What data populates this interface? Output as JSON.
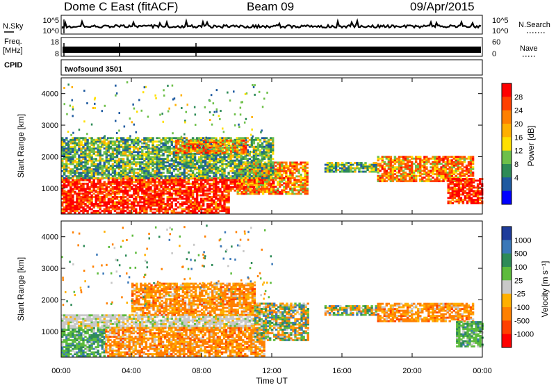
{
  "header": {
    "station": "Dome C East (fitACF)",
    "beam": "Beam 09",
    "date": "09/Apr/2015"
  },
  "left_labels": {
    "nsky": "N.Sky",
    "freq": "Freq.",
    "freq_unit": "[MHz]",
    "cpid": "CPID"
  },
  "right_labels": {
    "nsearch": "N.Search",
    "nave": "Nave"
  },
  "noise_panel": {
    "left_ticks": [
      "10^5",
      "10^0"
    ],
    "right_ticks": [
      "10^5",
      "10^0"
    ]
  },
  "freq_panel": {
    "left_ticks": [
      "18",
      "8"
    ],
    "right_ticks": [
      "60",
      "0"
    ]
  },
  "cpid_text": "twofsound 3501",
  "chart_data": [
    {
      "type": "heatmap",
      "panel": "power",
      "ylabel": "Slant Range [km]",
      "xlabel": "Time UT",
      "x_ticks": [
        "00:00",
        "04:00",
        "08:00",
        "12:00",
        "16:00",
        "20:00",
        "00:00"
      ],
      "xlim_hours": [
        0,
        24
      ],
      "y_ticks": [
        1000,
        2000,
        3000,
        4000
      ],
      "ylim": [
        180,
        4500
      ],
      "colorbar": {
        "label": "Power [dB]",
        "ticks": [
          "28",
          "24",
          "20",
          "16",
          "12",
          "8",
          "4"
        ],
        "colors": [
          "#ff0000",
          "#ff4000",
          "#ff8000",
          "#ffb000",
          "#ffe000",
          "#6ec04a",
          "#2e8b57",
          "#1e5aa0",
          "#0000ff"
        ]
      },
      "echo_regions": [
        {
          "t0": 0.0,
          "t1": 9.5,
          "r0": 200,
          "r1": 900,
          "level": "high"
        },
        {
          "t0": 0.0,
          "t1": 12.0,
          "r0": 900,
          "r1": 1300,
          "level": "high"
        },
        {
          "t0": 10.0,
          "t1": 14.0,
          "r0": 800,
          "r1": 1800,
          "level": "mid"
        },
        {
          "t0": 0.0,
          "t1": 12.0,
          "r0": 1300,
          "r1": 2600,
          "level": "low"
        },
        {
          "t0": 6.5,
          "t1": 10.5,
          "r0": 2100,
          "r1": 2500,
          "level": "mid"
        },
        {
          "t0": 15.0,
          "t1": 18.0,
          "r0": 1500,
          "r1": 1800,
          "level": "low"
        },
        {
          "t0": 18.0,
          "t1": 23.5,
          "r0": 1200,
          "r1": 2000,
          "level": "mid"
        },
        {
          "t0": 22.0,
          "t1": 24.0,
          "r0": 500,
          "r1": 1300,
          "level": "high"
        }
      ]
    },
    {
      "type": "heatmap",
      "panel": "velocity",
      "ylabel": "Slant Range [km]",
      "xlabel": "Time UT",
      "x_ticks": [
        "00:00",
        "04:00",
        "08:00",
        "12:00",
        "16:00",
        "20:00",
        "00:00"
      ],
      "xlim_hours": [
        0,
        24
      ],
      "y_ticks": [
        1000,
        2000,
        3000,
        4000
      ],
      "ylim": [
        180,
        4500
      ],
      "colorbar": {
        "label": "Velocity [m s⁻¹]",
        "ticks": [
          "1000",
          "500",
          "100",
          "25",
          "-25",
          "-100",
          "-500",
          "-1000"
        ],
        "colors": [
          "#1e3c9a",
          "#3a78b8",
          "#2e8b57",
          "#5dbb3c",
          "#c8c8c8",
          "#ffb000",
          "#ff8000",
          "#ff4000",
          "#ff0000"
        ]
      },
      "echo_regions": [
        {
          "t0": 0.0,
          "t1": 2.5,
          "r0": 200,
          "r1": 1100,
          "level": "green"
        },
        {
          "t0": 0.0,
          "t1": 11.0,
          "r0": 1100,
          "r1": 1500,
          "level": "gray"
        },
        {
          "t0": 2.5,
          "t1": 11.5,
          "r0": 200,
          "r1": 1100,
          "level": "orange"
        },
        {
          "t0": 4.0,
          "t1": 11.0,
          "r0": 1500,
          "r1": 2500,
          "level": "orange"
        },
        {
          "t0": 11.0,
          "t1": 14.0,
          "r0": 700,
          "r1": 1900,
          "level": "mixed"
        },
        {
          "t0": 15.0,
          "t1": 18.0,
          "r0": 1500,
          "r1": 1800,
          "level": "mixed"
        },
        {
          "t0": 18.0,
          "t1": 23.5,
          "r0": 1300,
          "r1": 1900,
          "level": "orange"
        },
        {
          "t0": 22.5,
          "t1": 24.0,
          "r0": 500,
          "r1": 1300,
          "level": "green"
        }
      ]
    }
  ]
}
